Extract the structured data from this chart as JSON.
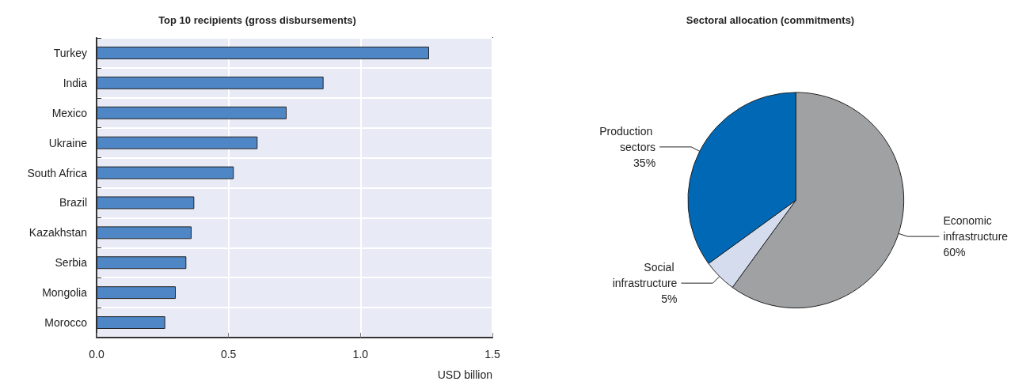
{
  "chart_data": [
    {
      "type": "bar",
      "orientation": "horizontal",
      "title": "Top 10 recipients (gross disbursements)",
      "xlabel": "USD billion",
      "categories": [
        "Turkey",
        "India",
        "Mexico",
        "Ukraine",
        "South Africa",
        "Brazil",
        "Kazakhstan",
        "Serbia",
        "Mongolia",
        "Morocco"
      ],
      "values": [
        1.26,
        0.86,
        0.72,
        0.61,
        0.52,
        0.37,
        0.36,
        0.34,
        0.3,
        0.26
      ],
      "color": "#4f86c6",
      "xlim": [
        0,
        1.5
      ],
      "xticks": [
        {
          "value": 0,
          "label": "0.0"
        },
        {
          "value": 0.5,
          "label": "0.5"
        },
        {
          "value": 1,
          "label": "1.0"
        },
        {
          "value": 1.5,
          "label": "1.5"
        }
      ],
      "grid": true
    },
    {
      "type": "pie",
      "title": "Sectoral allocation (commitments)",
      "categories": [
        "Economic infrastructure",
        "Social infrastructure",
        "Production sectors"
      ],
      "values": [
        60,
        5,
        35
      ],
      "value_labels": [
        "60%",
        "5%",
        "35%"
      ],
      "colors": [
        "#a0a1a3",
        "#d4dcee",
        "#0068b5"
      ]
    }
  ]
}
